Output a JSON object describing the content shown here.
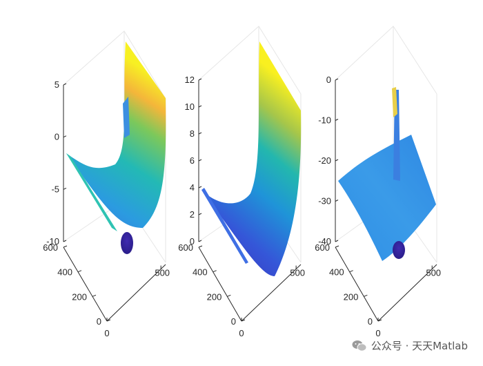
{
  "chart_data": [
    {
      "type": "surface",
      "zticks": [
        "5",
        "0",
        "-5",
        "-10"
      ],
      "xticks": [
        "0",
        "200",
        "400",
        "600"
      ],
      "yticks": [
        "0",
        "500"
      ],
      "zlim": [
        -10,
        5
      ],
      "colormap": "parula"
    },
    {
      "type": "surface",
      "zticks": [
        "12",
        "10",
        "8",
        "6",
        "4",
        "2",
        "0"
      ],
      "xticks": [
        "0",
        "200",
        "400",
        "600"
      ],
      "yticks": [
        "0",
        "500"
      ],
      "zlim": [
        0,
        12
      ],
      "colormap": "parula"
    },
    {
      "type": "surface",
      "zticks": [
        "0",
        "-10",
        "-20",
        "-30",
        "-40"
      ],
      "xticks": [
        "0",
        "200",
        "400",
        "600"
      ],
      "yticks": [
        "0",
        "500"
      ],
      "zlim": [
        -40,
        0
      ],
      "colormap": "parula"
    }
  ],
  "watermark": {
    "text": "公众号 · 天天Matlab",
    "icon": "wechat-icon"
  },
  "colors": {
    "axis": "#262626",
    "grid": "#e6e6e6",
    "parula_blue": "#3e26a8",
    "parula_yellow": "#f9fb15"
  }
}
